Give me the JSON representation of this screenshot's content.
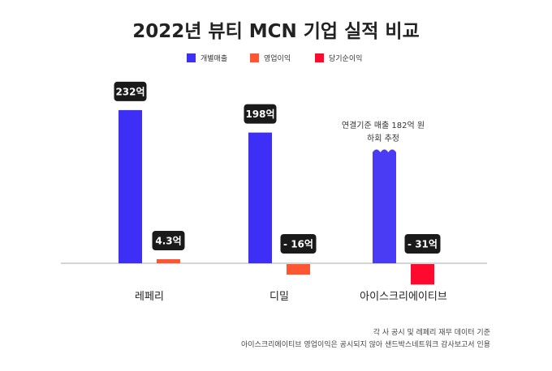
{
  "chart_data": {
    "type": "bar",
    "title": "2022년 뷰티 MCN 기업 실적 비교",
    "unit": "억",
    "categories": [
      "레페리",
      "디밀",
      "아이스크리에이티브"
    ],
    "legend": [
      {
        "name": "개별매출",
        "color": "#3d2ff5"
      },
      {
        "name": "영업이익",
        "color": "#ff5533"
      },
      {
        "name": "당기순이익",
        "color": "#ff0a2e"
      }
    ],
    "legend_position": "top-center",
    "bars": [
      {
        "category": "레페리",
        "series": "개별매출",
        "value": 232,
        "label": "232억",
        "color": "#3d2ff5"
      },
      {
        "category": "레페리",
        "series": "영업이익",
        "value": 4.3,
        "label": "4.3억",
        "color": "#ff5533"
      },
      {
        "category": "디밀",
        "series": "개별매출",
        "value": 198,
        "label": "198억",
        "color": "#3d2ff5"
      },
      {
        "category": "디밀",
        "series": "영업이익",
        "value": -16,
        "label": "- 16억",
        "color": "#ff5533"
      },
      {
        "category": "아이스크리에이티브",
        "series": "개별매출",
        "value": 182,
        "label": "",
        "color": "#4a3cf5",
        "truncated": true
      },
      {
        "category": "아이스크리에이티브",
        "series": "당기순이익",
        "value": -31,
        "label": "- 31억",
        "color": "#ff0a2e"
      }
    ],
    "annotation": [
      "연결기준 매출 182억 원",
      "하회 추정"
    ],
    "notes": [
      "각 사 공시 및 레페리 재무 데이터 기준",
      "아이스크리에이티브 영업이익은 공시되지 않아 샌드박스네트워크 감사보고서 인용"
    ],
    "grid": false
  }
}
